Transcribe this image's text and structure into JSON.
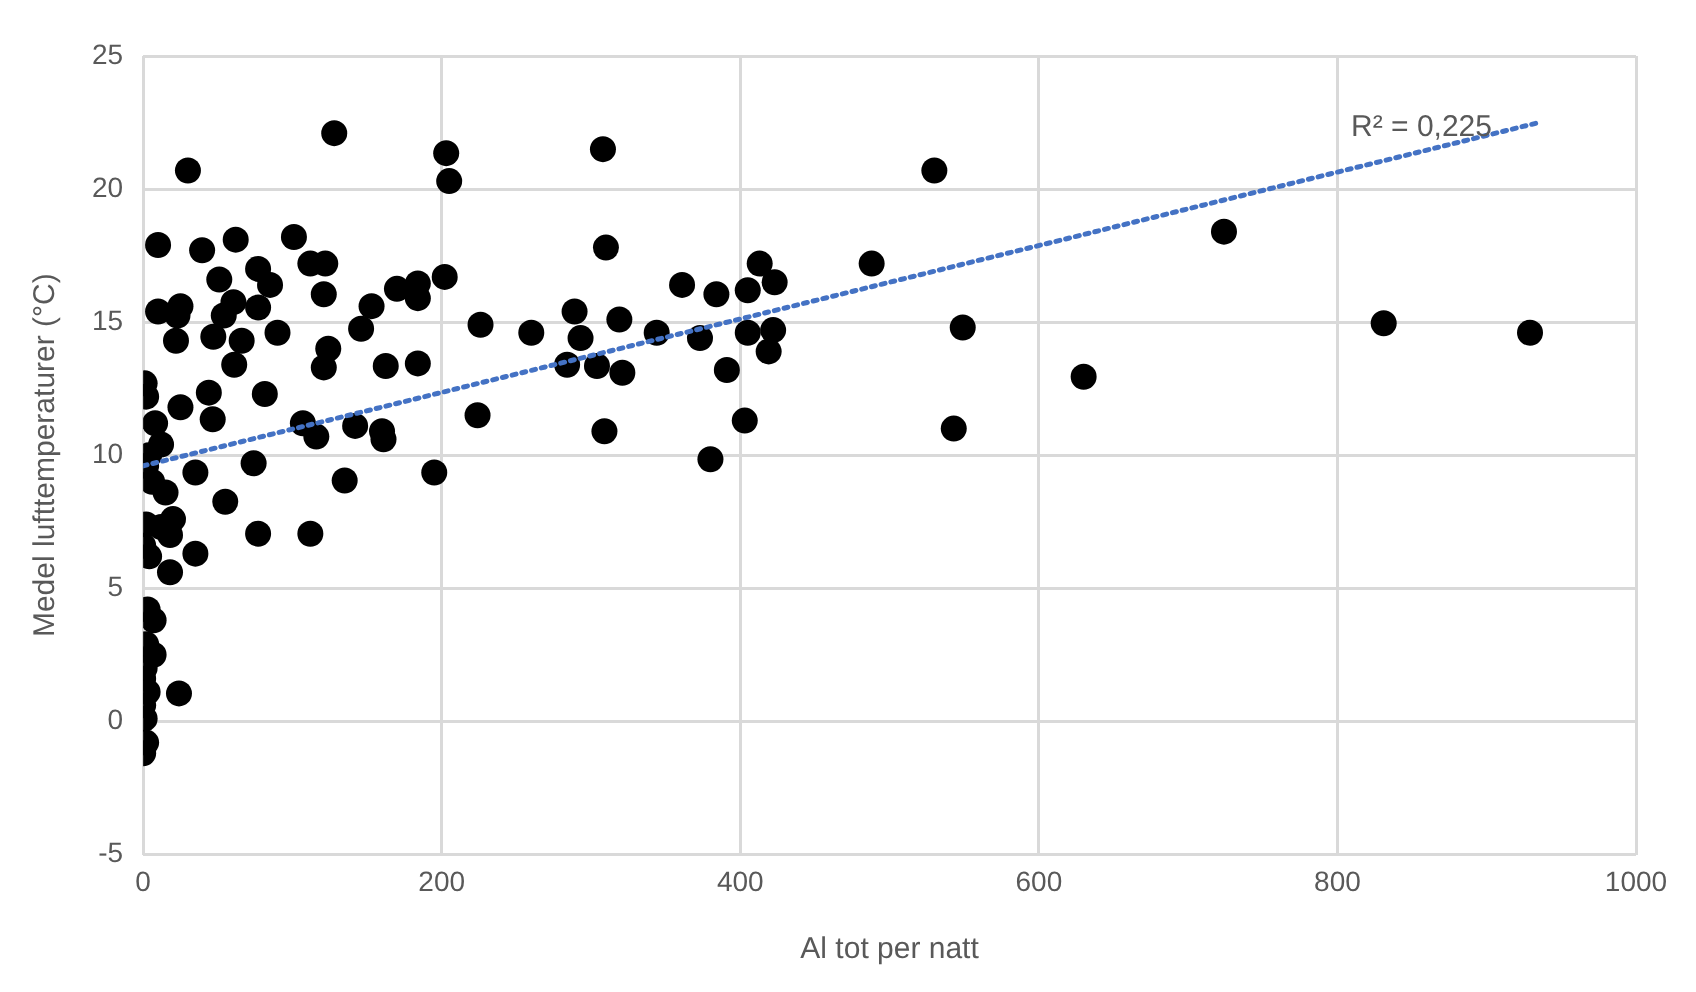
{
  "chart_data": {
    "type": "scatter",
    "xlabel": "Al tot per natt",
    "ylabel": "Medel lufttemperaturer (°C)",
    "xlim": [
      0,
      1000
    ],
    "xticks": [
      0,
      200,
      400,
      600,
      800,
      1000
    ],
    "ylim": [
      -5,
      25
    ],
    "yticks": [
      -5,
      0,
      5,
      10,
      15,
      20,
      25
    ],
    "grid": true,
    "legend": false,
    "marker": "circle",
    "annotations": [
      "R² = 0,225"
    ],
    "series": [
      {
        "color": "#000000",
        "x": [
          929,
          831,
          724,
          630,
          549,
          543,
          530,
          308,
          310,
          488,
          413,
          423,
          361,
          384,
          405,
          226,
          260,
          289,
          319,
          293,
          344,
          373,
          405,
          422,
          419,
          284,
          304,
          321,
          391,
          224,
          309,
          403,
          380,
          128,
          30,
          203,
          205,
          10,
          39.5,
          62,
          101,
          77,
          85,
          112,
          122,
          51,
          121,
          10,
          25,
          23,
          60.5,
          54,
          77,
          22,
          47,
          66,
          90,
          61,
          124,
          121,
          146,
          153,
          170,
          184,
          202,
          184,
          162.5,
          184,
          44,
          81.5,
          46.6,
          25,
          107,
          116,
          142,
          161,
          160,
          35,
          74,
          135,
          195,
          55,
          77,
          112,
          35,
          18,
          24,
          1,
          2,
          8,
          12,
          4,
          2,
          6,
          15,
          20,
          2,
          12,
          18,
          0,
          4,
          3,
          7,
          2,
          7,
          1,
          0,
          3,
          0,
          1,
          2,
          0
        ],
        "values": [
          14.6,
          14.96,
          18.4,
          12.95,
          14.8,
          11.0,
          20.7,
          21.5,
          17.8,
          17.2,
          17.2,
          16.5,
          16.4,
          16.05,
          16.2,
          14.9,
          14.6,
          15.4,
          15.1,
          14.4,
          14.6,
          14.4,
          14.6,
          14.7,
          13.9,
          13.4,
          13.35,
          13.1,
          13.2,
          11.5,
          10.9,
          11.3,
          9.85,
          22.1,
          20.7,
          21.35,
          20.3,
          17.9,
          17.7,
          18.1,
          18.2,
          17.0,
          16.4,
          17.2,
          17.2,
          16.6,
          16.05,
          15.4,
          15.6,
          15.25,
          15.75,
          15.25,
          15.55,
          14.3,
          14.45,
          14.3,
          14.6,
          13.4,
          14.0,
          13.3,
          14.75,
          15.6,
          16.25,
          16.45,
          16.7,
          15.9,
          13.35,
          13.45,
          12.35,
          12.3,
          11.35,
          11.8,
          11.2,
          10.7,
          11.1,
          10.6,
          10.9,
          9.35,
          9.7,
          9.05,
          9.35,
          8.25,
          7.05,
          7.05,
          6.3,
          5.6,
          1.05,
          12.7,
          12.2,
          11.2,
          10.4,
          10.0,
          9.6,
          9.0,
          8.6,
          7.6,
          7.4,
          7.3,
          7.0,
          6.6,
          6.2,
          4.2,
          3.8,
          2.9,
          2.5,
          2.0,
          1.6,
          1.1,
          0.6,
          0.1,
          -0.8,
          -1.2
        ]
      },
      {
        "type": "line",
        "color": "#4472c4",
        "line_style": "dotted",
        "marker": "none",
        "x": [
          0,
          935
        ],
        "values": [
          9.6,
          22.5
        ]
      }
    ]
  }
}
